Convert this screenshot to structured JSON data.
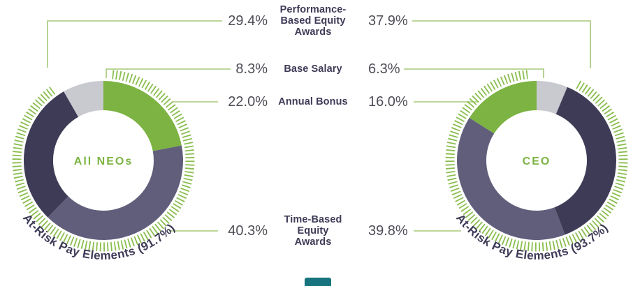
{
  "colors": {
    "navy": "#3e3b57",
    "purple": "#615e7c",
    "green": "#7cb342",
    "gray": "#c9c9d0",
    "hatch_green": "#8abd4e",
    "callout_line": "#a5c879",
    "value_text": "#4e4e57",
    "label_text": "#3e3b57",
    "center_label": "#7cb342",
    "deco_teal": "#17737d"
  },
  "legend": {
    "rows": [
      {
        "left_value": "29.4%",
        "label": "Performance-\nBased Equity\nAwards",
        "right_value": "37.9%"
      },
      {
        "left_value": "8.3%",
        "label": "Base Salary",
        "right_value": "6.3%"
      },
      {
        "left_value": "22.0%",
        "label": "Annual Bonus",
        "right_value": "16.0%"
      },
      {
        "left_value": "40.3%",
        "label": "Time-Based\nEquity\nAwards",
        "right_value": "39.8%"
      }
    ]
  },
  "chart_data": [
    {
      "type": "pie",
      "variant": "donut",
      "title": "All NEOs",
      "at_risk_label": "At-Risk Pay Elements (91.7%)",
      "at_risk_percent": 91.7,
      "start_angle": "top, clockwise",
      "segments": [
        {
          "name": "Annual Bonus",
          "value": 22.0,
          "color": "#7cb342",
          "at_risk": true
        },
        {
          "name": "Time-Based Equity Awards",
          "value": 40.3,
          "color": "#615e7c",
          "at_risk": true
        },
        {
          "name": "Performance-Based Equity Awards",
          "value": 29.4,
          "color": "#3e3b57",
          "at_risk": true
        },
        {
          "name": "Base Salary",
          "value": 8.3,
          "color": "#c9c9d0",
          "at_risk": false
        }
      ]
    },
    {
      "type": "pie",
      "variant": "donut",
      "title": "CEO",
      "at_risk_label": "At-Risk Pay Elements (93.7%)",
      "at_risk_percent": 93.7,
      "start_angle": "top, clockwise",
      "segments": [
        {
          "name": "Base Salary",
          "value": 6.3,
          "color": "#c9c9d0",
          "at_risk": false
        },
        {
          "name": "Performance-Based Equity Awards",
          "value": 37.9,
          "color": "#3e3b57",
          "at_risk": true
        },
        {
          "name": "Time-Based Equity Awards",
          "value": 39.8,
          "color": "#615e7c",
          "at_risk": true
        },
        {
          "name": "Annual Bonus",
          "value": 16.0,
          "color": "#7cb342",
          "at_risk": true
        }
      ]
    }
  ]
}
